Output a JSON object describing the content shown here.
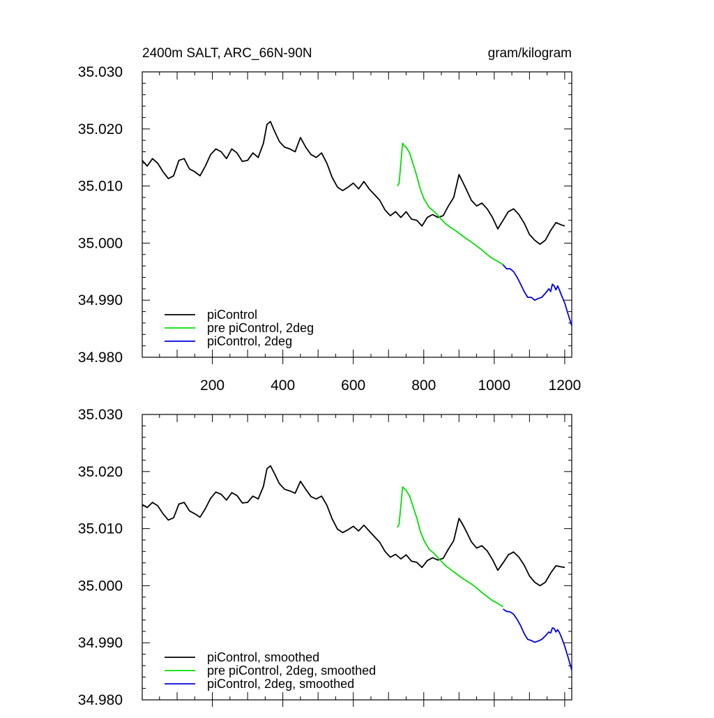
{
  "chart_data": [
    {
      "type": "line",
      "title": "2400m SALT, ARC_66N-90N",
      "units": "gram/kilogram",
      "xlabel": "",
      "ylabel": "",
      "xlim": [
        1,
        1220
      ],
      "ylim": [
        34.98,
        35.03
      ],
      "x_tick_labels": [
        "200",
        "400",
        "600",
        "800",
        "1000",
        "1200"
      ],
      "x_ticks": [
        200,
        400,
        600,
        800,
        1000,
        1200
      ],
      "y_tick_labels": [
        "35.030",
        "35.020",
        "35.010",
        "35.000",
        "34.990",
        "34.980"
      ],
      "y_ticks": [
        35.03,
        35.02,
        35.01,
        35.0,
        34.99,
        34.98
      ],
      "grid": false,
      "legend_position": "bottom-left",
      "series": [
        {
          "name": "piControl",
          "color": "#000000",
          "x": [
            1,
            15,
            30,
            45,
            60,
            75,
            90,
            105,
            120,
            135,
            150,
            165,
            180,
            195,
            210,
            225,
            240,
            255,
            270,
            285,
            300,
            315,
            330,
            345,
            355,
            365,
            375,
            390,
            405,
            420,
            435,
            450,
            465,
            480,
            495,
            510,
            525,
            540,
            555,
            570,
            585,
            600,
            615,
            630,
            645,
            660,
            675,
            690,
            705,
            720,
            735,
            750,
            765,
            780,
            795,
            810,
            825,
            840,
            855,
            870,
            885,
            900,
            910,
            920,
            935,
            950,
            965,
            980,
            995,
            1010,
            1025,
            1040,
            1055,
            1070,
            1085,
            1100,
            1115,
            1130,
            1145,
            1160,
            1175,
            1190,
            1200
          ],
          "y": [
            35.0145,
            35.0135,
            35.0148,
            35.014,
            35.0125,
            35.0113,
            35.0118,
            35.0145,
            35.0148,
            35.013,
            35.0125,
            35.0118,
            35.0135,
            35.0155,
            35.0165,
            35.016,
            35.0148,
            35.0165,
            35.0158,
            35.0143,
            35.0145,
            35.0158,
            35.015,
            35.0175,
            35.0208,
            35.0213,
            35.0198,
            35.0178,
            35.0168,
            35.0165,
            35.016,
            35.0185,
            35.0168,
            35.0155,
            35.015,
            35.0158,
            35.014,
            35.0115,
            35.0098,
            35.0092,
            35.0098,
            35.0105,
            35.0095,
            35.0108,
            35.0095,
            35.0085,
            35.0075,
            35.0058,
            35.0048,
            35.0055,
            35.0045,
            35.0055,
            35.0042,
            35.004,
            35.003,
            35.0045,
            35.005,
            35.0045,
            35.0048,
            35.0065,
            35.008,
            35.012,
            35.0108,
            35.0095,
            35.0075,
            35.0065,
            35.007,
            35.006,
            35.0045,
            35.0025,
            35.004,
            35.0055,
            35.006,
            35.005,
            35.0035,
            35.0015,
            35.0005,
            34.9998,
            35.0005,
            35.0022,
            35.0036,
            35.0032,
            35.003
          ]
        },
        {
          "name": "pre piControl, 2deg",
          "color": "#00e000",
          "x": [
            725,
            730,
            735,
            740,
            745,
            750,
            760,
            770,
            780,
            790,
            800,
            815,
            830,
            845,
            860,
            875,
            890,
            905,
            920,
            935,
            950,
            965,
            980,
            995,
            1010,
            1025
          ],
          "y": [
            35.01,
            35.0105,
            35.014,
            35.0175,
            35.017,
            35.0168,
            35.0158,
            35.0138,
            35.0118,
            35.0095,
            35.0078,
            35.0063,
            35.0055,
            35.0045,
            35.0035,
            35.0028,
            35.0022,
            35.0015,
            35.0008,
            35.0002,
            34.9995,
            34.9988,
            34.998,
            34.9973,
            34.9968,
            34.9962
          ]
        },
        {
          "name": "piControl, 2deg",
          "color": "#0000e0",
          "x": [
            1025,
            1035,
            1045,
            1055,
            1065,
            1075,
            1085,
            1095,
            1105,
            1115,
            1125,
            1135,
            1145,
            1155,
            1160,
            1165,
            1170,
            1175,
            1180,
            1185,
            1190,
            1200,
            1210,
            1220
          ],
          "y": [
            34.9962,
            34.9955,
            34.9955,
            34.995,
            34.994,
            34.9928,
            34.9915,
            34.9905,
            34.9905,
            34.99,
            34.9903,
            34.9905,
            34.9912,
            34.992,
            34.9915,
            34.9928,
            34.9925,
            34.9918,
            34.9925,
            34.9918,
            34.991,
            34.9895,
            34.9875,
            34.9855
          ]
        }
      ]
    },
    {
      "type": "line",
      "title": "",
      "units": "",
      "xlabel": "",
      "ylabel": "",
      "xlim": [
        1,
        1220
      ],
      "ylim": [
        34.98,
        35.03
      ],
      "x_tick_labels": [],
      "x_ticks": [
        200,
        400,
        600,
        800,
        1000,
        1200
      ],
      "y_tick_labels": [
        "35.030",
        "35.020",
        "35.010",
        "35.000",
        "34.990",
        "34.980"
      ],
      "y_ticks": [
        35.03,
        35.02,
        35.01,
        35.0,
        34.99,
        34.98
      ],
      "grid": false,
      "legend_position": "bottom-left",
      "series": [
        {
          "name": "piControl, smoothed",
          "color": "#000000",
          "x": [
            1,
            15,
            30,
            45,
            60,
            75,
            90,
            105,
            120,
            135,
            150,
            165,
            180,
            195,
            210,
            225,
            240,
            255,
            270,
            285,
            300,
            315,
            330,
            345,
            355,
            365,
            375,
            390,
            405,
            420,
            435,
            450,
            465,
            480,
            495,
            510,
            525,
            540,
            555,
            570,
            585,
            600,
            615,
            630,
            645,
            660,
            675,
            690,
            705,
            720,
            735,
            750,
            765,
            780,
            795,
            810,
            825,
            840,
            855,
            870,
            885,
            900,
            910,
            920,
            935,
            950,
            965,
            980,
            995,
            1010,
            1025,
            1040,
            1055,
            1070,
            1085,
            1100,
            1115,
            1130,
            1145,
            1160,
            1175,
            1190,
            1200
          ],
          "y": [
            35.0142,
            35.0137,
            35.0146,
            35.014,
            35.0126,
            35.0115,
            35.0119,
            35.0143,
            35.0146,
            35.0131,
            35.0126,
            35.012,
            35.0135,
            35.0153,
            35.0164,
            35.016,
            35.015,
            35.0163,
            35.0158,
            35.0145,
            35.0146,
            35.0157,
            35.0152,
            35.0174,
            35.0205,
            35.021,
            35.0198,
            35.0179,
            35.0169,
            35.0166,
            35.0162,
            35.0183,
            35.0169,
            35.0156,
            35.0152,
            35.0157,
            35.0141,
            35.0117,
            35.0099,
            35.0093,
            35.0098,
            35.0104,
            35.0096,
            35.0106,
            35.0096,
            35.0086,
            35.0076,
            35.006,
            35.005,
            35.0055,
            35.0047,
            35.0054,
            35.0043,
            35.0041,
            35.0032,
            35.0044,
            35.0049,
            35.0045,
            35.0048,
            35.0064,
            35.0079,
            35.0118,
            35.0108,
            35.0096,
            35.0077,
            35.0066,
            35.007,
            35.0061,
            35.0046,
            35.0027,
            35.004,
            35.0054,
            35.0059,
            35.005,
            35.0036,
            35.0017,
            35.0006,
            35.0,
            35.0006,
            35.0022,
            35.0035,
            35.0033,
            35.0032
          ]
        },
        {
          "name": "pre piControl, 2deg, smoothed",
          "color": "#00e000",
          "x": [
            725,
            730,
            735,
            740,
            745,
            750,
            760,
            770,
            780,
            790,
            800,
            815,
            830,
            845,
            860,
            875,
            890,
            905,
            920,
            935,
            950,
            965,
            980,
            995,
            1010,
            1025
          ],
          "y": [
            35.0102,
            35.0108,
            35.014,
            35.0173,
            35.017,
            35.0167,
            35.0157,
            35.0138,
            35.0119,
            35.0096,
            35.008,
            35.0064,
            35.0056,
            35.0046,
            35.0036,
            35.0029,
            35.0022,
            35.0015,
            35.0009,
            35.0003,
            34.9996,
            34.9988,
            34.9981,
            34.9974,
            34.9969,
            34.9963
          ]
        },
        {
          "name": "piControl, 2deg, smoothed",
          "color": "#0000e0",
          "x": [
            1025,
            1035,
            1045,
            1055,
            1065,
            1075,
            1085,
            1095,
            1105,
            1115,
            1125,
            1135,
            1145,
            1155,
            1160,
            1165,
            1170,
            1175,
            1180,
            1185,
            1190,
            1200,
            1210,
            1220
          ],
          "y": [
            34.9959,
            34.9955,
            34.9954,
            34.995,
            34.9941,
            34.993,
            34.9916,
            34.9906,
            34.9904,
            34.9901,
            34.9903,
            34.9906,
            34.9912,
            34.9919,
            34.9917,
            34.9926,
            34.9925,
            34.9919,
            34.9923,
            34.9918,
            34.9911,
            34.9894,
            34.9874,
            34.9852
          ]
        }
      ]
    }
  ]
}
